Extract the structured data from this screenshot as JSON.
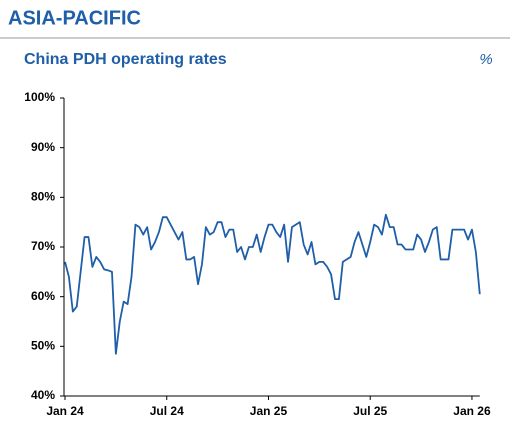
{
  "header": {
    "title": "ASIA-PACIFIC"
  },
  "chart_data": {
    "type": "line",
    "title": "China PDH operating rates",
    "unit_label": "%",
    "categories": [
      "Jan 24",
      null,
      null,
      null,
      null,
      null,
      null,
      null,
      null,
      null,
      null,
      null,
      null,
      null,
      null,
      null,
      null,
      null,
      null,
      null,
      null,
      null,
      null,
      null,
      null,
      null,
      "Jul 24",
      null,
      null,
      null,
      null,
      null,
      null,
      null,
      null,
      null,
      null,
      null,
      null,
      null,
      null,
      null,
      null,
      null,
      null,
      null,
      null,
      null,
      null,
      null,
      null,
      null,
      "Jan 25",
      null,
      null,
      null,
      null,
      null,
      null,
      null,
      null,
      null,
      null,
      null,
      null,
      null,
      null,
      null,
      null,
      null,
      null,
      null,
      null,
      null,
      null,
      null,
      null,
      null,
      "Jul 25",
      null,
      null,
      null,
      null,
      null,
      null,
      null,
      null,
      null,
      null,
      null,
      null,
      null,
      null,
      null,
      null,
      null,
      null,
      null,
      null,
      null,
      null,
      null,
      null,
      null,
      "Jan 26",
      null,
      null
    ],
    "series": [
      {
        "name": "China PDH operating rates",
        "color": "#1f5ea8",
        "values": [
          67,
          64,
          57,
          58,
          65,
          72,
          72,
          66,
          68,
          67,
          65.5,
          65.3,
          65,
          48.5,
          55,
          59,
          58.5,
          64,
          74.5,
          74,
          72.5,
          74,
          69.5,
          71,
          73,
          76,
          76,
          74.5,
          73,
          71.5,
          73,
          67.5,
          67.5,
          68,
          62.5,
          66.5,
          74,
          72.5,
          73,
          75,
          75,
          72,
          73.5,
          73.5,
          69,
          70,
          67.5,
          70,
          70,
          72.5,
          69,
          72,
          74.5,
          74.5,
          73,
          72,
          74.5,
          67,
          74,
          74.5,
          75,
          70.5,
          68.5,
          71,
          66.5,
          67,
          67,
          66,
          64.5,
          59.5,
          59.5,
          67,
          67.5,
          68,
          71,
          73,
          70.5,
          68,
          71,
          74.5,
          74,
          72.5,
          76.5,
          74,
          74,
          70.5,
          70.5,
          69.5,
          69.5,
          69.5,
          72.5,
          71.5,
          69,
          71,
          73.5,
          74,
          67.5,
          67.5,
          67.5,
          73.5,
          73.5,
          73.5,
          73.5,
          71.5,
          73.5,
          69,
          60.5
        ]
      }
    ],
    "ylim": [
      40,
      100
    ],
    "yticks": [
      {
        "value": 40,
        "label": "40%"
      },
      {
        "value": 50,
        "label": "50%"
      },
      {
        "value": 60,
        "label": "60%"
      },
      {
        "value": 70,
        "label": "70%"
      },
      {
        "value": 80,
        "label": "80%"
      },
      {
        "value": 90,
        "label": "90%"
      },
      {
        "value": 100,
        "label": "100%"
      }
    ],
    "grid": false
  }
}
